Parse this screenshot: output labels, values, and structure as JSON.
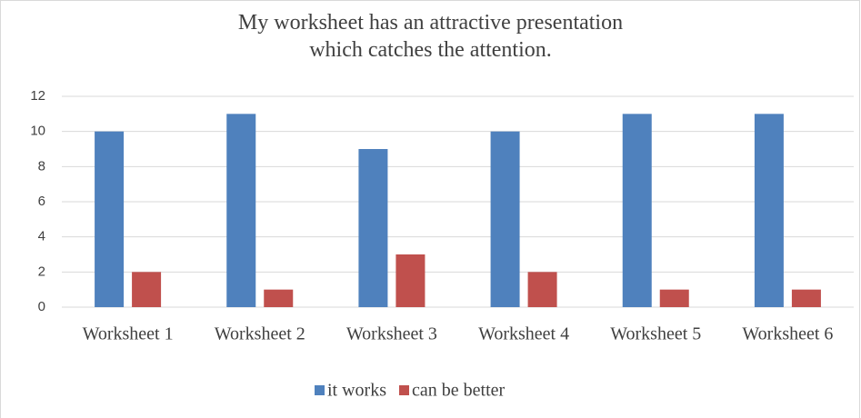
{
  "chart_data": {
    "type": "bar",
    "title": "My worksheet has an attractive presentation which catches the attention.",
    "categories": [
      "Worksheet 1",
      "Worksheet 2",
      "Worksheet 3",
      "Worksheet 4",
      "Worksheet 5",
      "Worksheet 6"
    ],
    "series": [
      {
        "name": "it works",
        "color": "#4f81bd",
        "values": [
          10,
          11,
          9,
          10,
          11,
          11
        ]
      },
      {
        "name": "can be better",
        "color": "#c0504d",
        "values": [
          2,
          1,
          3,
          2,
          1,
          1
        ]
      }
    ],
    "ylim": [
      0,
      12
    ],
    "yticks": [
      0,
      2,
      4,
      6,
      8,
      10,
      12
    ],
    "grid": true,
    "legend": "bottom"
  }
}
